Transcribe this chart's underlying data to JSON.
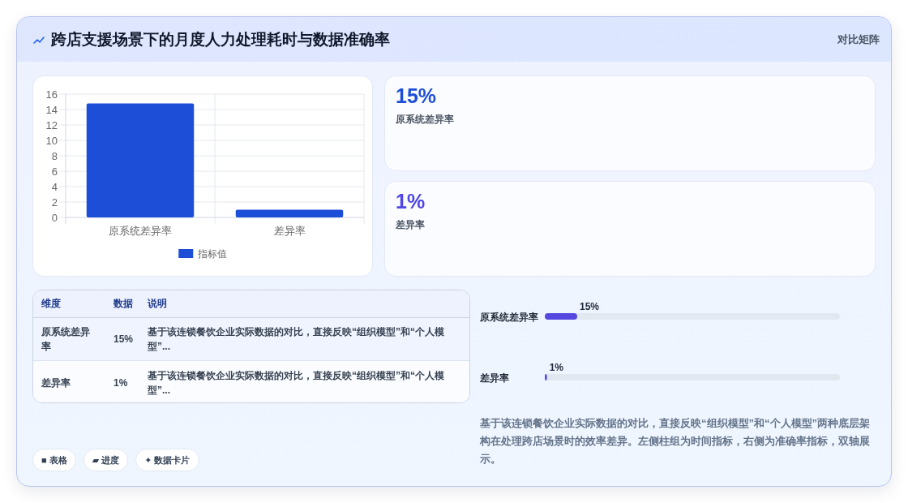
{
  "chart_data": [
    {
      "type": "other",
      "title": "跨店支援场景下的月度人力处理耗时与数据准确率",
      "subtitle": "对比矩阵"
    },
    {
      "type": "bar",
      "categories": [
        "原系统差异率",
        "差异率"
      ],
      "series": [
        {
          "name": "指标值",
          "color": "#1d4ed8",
          "values": [
            14.8,
            1
          ]
        }
      ],
      "ylim": [
        0,
        16
      ],
      "yticks": [
        0,
        2,
        4,
        6,
        8,
        10,
        12,
        14,
        16
      ],
      "grid": true,
      "legend": "bottom"
    },
    {
      "type": "other",
      "title": "15%",
      "subtitle": "原系统差异率"
    },
    {
      "type": "other",
      "title": "1%",
      "subtitle": "差异率"
    },
    {
      "type": "other",
      "categories": [
        "维度",
        "数据",
        "说明"
      ],
      "cell_labels": [
        [
          "原系统差异率",
          "15%",
          "基于该连锁餐饮企业实际数据的对比，直接反映“组织模型”和“个人模型”..."
        ],
        [
          "差异率",
          "1%",
          "基于该连锁餐饮企业实际数据的对比，直接反映“组织模型”和“个人模型”..."
        ]
      ]
    },
    {
      "type": "bar",
      "orientation": "horizontal",
      "categories": [
        "原系统差异率",
        "差异率"
      ],
      "color": "#5548e0",
      "values": [
        15,
        1
      ],
      "data_labels": true,
      "value_labels": [
        "15%",
        "1%"
      ],
      "annotations": [
        "基于该连锁餐饮企业实际数据的对比，直接反映“组织模型”和“个人模型”两种底层架构在处理跨店场景时的效率差异。左侧柱组为时间指标，右侧为准确率指标，双轴展示。"
      ]
    },
    {
      "type": "other",
      "annotations": [
        "■ 表格",
        "▰ 进度",
        "✦ 数据卡片"
      ]
    }
  ]
}
